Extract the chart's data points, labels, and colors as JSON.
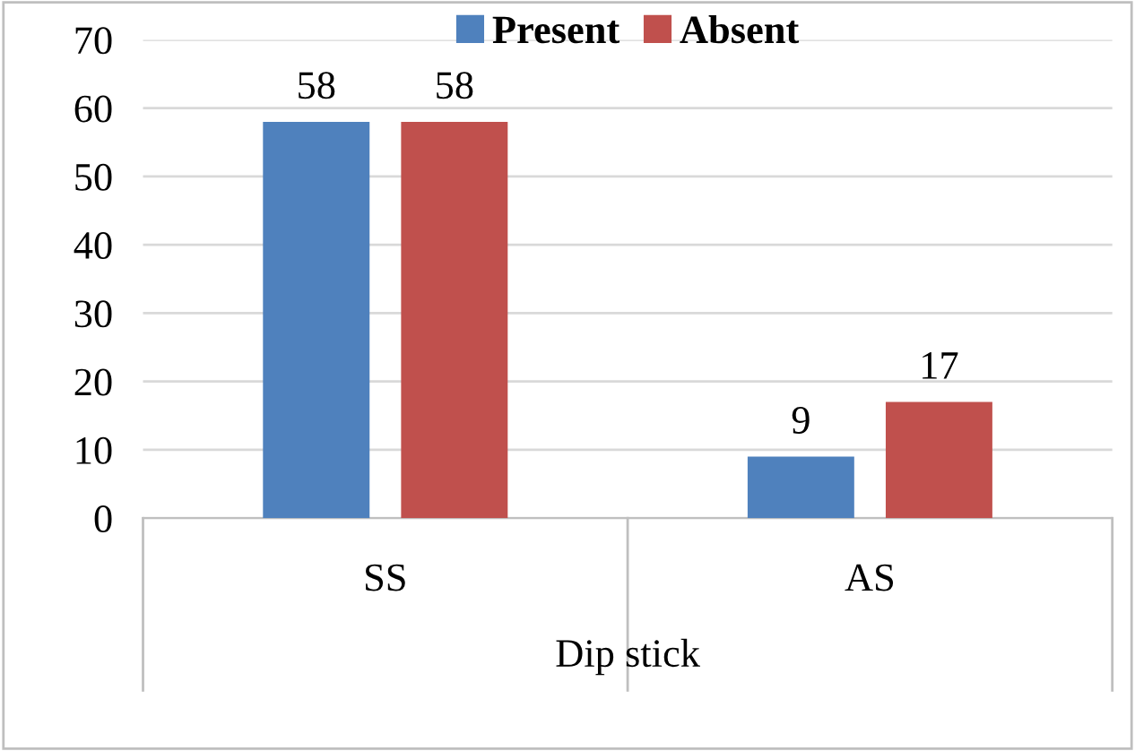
{
  "chart_data": {
    "type": "bar",
    "xlabel": "Dip stick",
    "categories": [
      "SS",
      "AS"
    ],
    "series": [
      {
        "name": "Present",
        "color": "#4f81bd",
        "values": [
          58,
          9
        ]
      },
      {
        "name": "Absent",
        "color": "#c0504d",
        "values": [
          58,
          17
        ]
      }
    ],
    "ylim": [
      0,
      70
    ],
    "yticks": [
      0,
      10,
      20,
      30,
      40,
      50,
      60,
      70
    ],
    "grid": "y",
    "legend": "top",
    "data_labels": true
  }
}
